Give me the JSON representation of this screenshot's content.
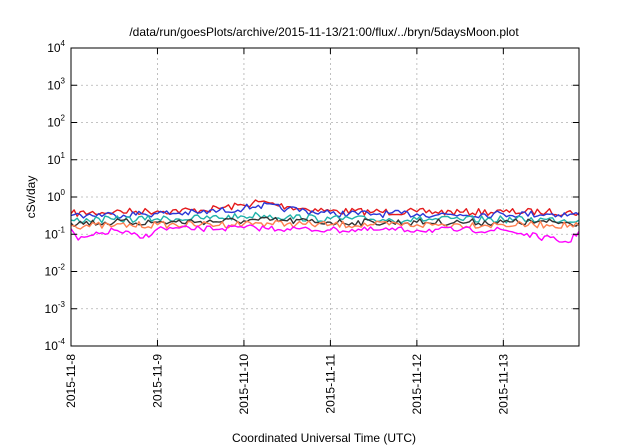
{
  "chart_data": {
    "type": "line",
    "title": "/data/run/goesPlots/archive/2015-11-13/21:00/flux/../bryn/5daysMoon.plot",
    "xlabel": "Coordinated Universal Time (UTC)",
    "ylabel": "cSv/day",
    "y_scale": "log",
    "ylim": [
      0.0001,
      10000
    ],
    "xlim": [
      "2015-11-08",
      "2015-11-13T21:00"
    ],
    "x_tick_labels": [
      "2015-11-8",
      "2015-11-9",
      "2015-11-10",
      "2015-11-11",
      "2015-11-12",
      "2015-11-13"
    ],
    "y_tick_labels": [
      {
        "base": "10",
        "exp": "-4"
      },
      {
        "base": "10",
        "exp": "-3"
      },
      {
        "base": "10",
        "exp": "-2"
      },
      {
        "base": "10",
        "exp": "-1"
      },
      {
        "base": "10",
        "exp": "0"
      },
      {
        "base": "10",
        "exp": "1"
      },
      {
        "base": "10",
        "exp": "2"
      },
      {
        "base": "10",
        "exp": "3"
      },
      {
        "base": "10",
        "exp": "4"
      }
    ],
    "grid": true,
    "legend": "none",
    "series": [
      {
        "color": "#e41a1c",
        "x": [
          "2015-11-08T00:00",
          "2015-11-08T12:00",
          "2015-11-09T00:00",
          "2015-11-09T12:00",
          "2015-11-10T00:00",
          "2015-11-10T04:00",
          "2015-11-10T12:00",
          "2015-11-11T00:00",
          "2015-11-11T12:00",
          "2015-11-12T00:00",
          "2015-11-12T12:00",
          "2015-11-13T00:00",
          "2015-11-13T12:00",
          "2015-11-13T21:00"
        ],
        "values": [
          0.36,
          0.4,
          0.42,
          0.44,
          0.6,
          0.75,
          0.55,
          0.42,
          0.4,
          0.4,
          0.39,
          0.4,
          0.4,
          0.38
        ]
      },
      {
        "color": "#2a36d6",
        "x": [
          "2015-11-08T00:00",
          "2015-11-08T12:00",
          "2015-11-09T00:00",
          "2015-11-09T12:00",
          "2015-11-10T00:00",
          "2015-11-10T04:00",
          "2015-11-10T12:00",
          "2015-11-11T00:00",
          "2015-11-11T12:00",
          "2015-11-12T00:00",
          "2015-11-12T12:00",
          "2015-11-13T00:00",
          "2015-11-13T12:00",
          "2015-11-13T21:00"
        ],
        "values": [
          0.32,
          0.34,
          0.36,
          0.38,
          0.5,
          0.6,
          0.48,
          0.36,
          0.35,
          0.35,
          0.34,
          0.35,
          0.35,
          0.33
        ]
      },
      {
        "color": "#20b2aa",
        "x": [
          "2015-11-08T00:00",
          "2015-11-08T12:00",
          "2015-11-09T00:00",
          "2015-11-09T12:00",
          "2015-11-10T00:00",
          "2015-11-10T04:00",
          "2015-11-10T12:00",
          "2015-11-11T00:00",
          "2015-11-11T12:00",
          "2015-11-12T00:00",
          "2015-11-12T12:00",
          "2015-11-13T00:00",
          "2015-11-13T12:00",
          "2015-11-13T21:00"
        ],
        "values": [
          0.24,
          0.25,
          0.26,
          0.27,
          0.3,
          0.33,
          0.29,
          0.26,
          0.25,
          0.25,
          0.25,
          0.25,
          0.25,
          0.24
        ]
      },
      {
        "color": "#333333",
        "x": [
          "2015-11-08T00:00",
          "2015-11-08T12:00",
          "2015-11-09T00:00",
          "2015-11-09T12:00",
          "2015-11-10T00:00",
          "2015-11-10T04:00",
          "2015-11-10T12:00",
          "2015-11-11T00:00",
          "2015-11-11T12:00",
          "2015-11-12T00:00",
          "2015-11-12T12:00",
          "2015-11-13T00:00",
          "2015-11-13T12:00",
          "2015-11-13T21:00"
        ],
        "values": [
          0.2,
          0.21,
          0.21,
          0.22,
          0.23,
          0.24,
          0.23,
          0.21,
          0.21,
          0.21,
          0.21,
          0.21,
          0.21,
          0.2
        ]
      },
      {
        "color": "#ff7f50",
        "x": [
          "2015-11-08T00:00",
          "2015-11-08T12:00",
          "2015-11-09T00:00",
          "2015-11-09T12:00",
          "2015-11-10T00:00",
          "2015-11-10T04:00",
          "2015-11-10T12:00",
          "2015-11-11T00:00",
          "2015-11-11T12:00",
          "2015-11-12T00:00",
          "2015-11-12T12:00",
          "2015-11-13T00:00",
          "2015-11-13T12:00",
          "2015-11-13T21:00"
        ],
        "values": [
          0.17,
          0.17,
          0.18,
          0.18,
          0.19,
          0.2,
          0.19,
          0.18,
          0.18,
          0.18,
          0.18,
          0.18,
          0.18,
          0.17
        ]
      },
      {
        "color": "#ff00ff",
        "x": [
          "2015-11-08T00:00",
          "2015-11-08T02:00",
          "2015-11-08T12:00",
          "2015-11-08T20:00",
          "2015-11-09T00:00",
          "2015-11-09T12:00",
          "2015-11-10T00:00",
          "2015-11-10T12:00",
          "2015-11-11T00:00",
          "2015-11-11T12:00",
          "2015-11-12T00:00",
          "2015-11-12T12:00",
          "2015-11-13T00:00",
          "2015-11-13T18:00",
          "2015-11-13T21:00"
        ],
        "values": [
          0.14,
          0.07,
          0.13,
          0.08,
          0.14,
          0.14,
          0.15,
          0.14,
          0.13,
          0.13,
          0.13,
          0.13,
          0.13,
          0.06,
          0.12
        ]
      }
    ]
  }
}
